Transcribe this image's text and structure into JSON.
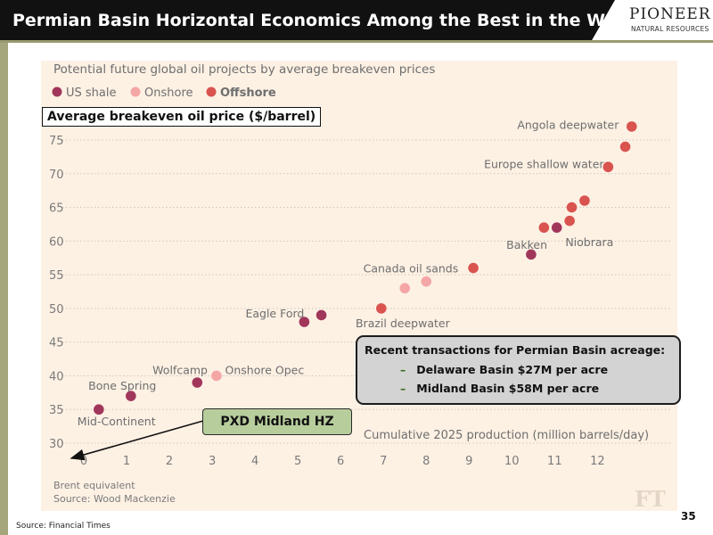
{
  "slide": {
    "title": "Permian Basin Horizontal Economics Among the Best in the World",
    "logo_main": "PIONEER",
    "logo_sub": "NATURAL RESOURCES",
    "source": "Source: Financial Times",
    "page_number": "35"
  },
  "annotations": {
    "yaxis_box": "Average breakeven oil price ($/barrel)",
    "pxd_label": "PXD Midland HZ",
    "callout_title": "Recent transactions for Permian Basin acreage:",
    "callout_items": [
      "Delaware Basin $27M per acre",
      "Midland Basin $58M per acre"
    ]
  },
  "colors": {
    "us_shale": "#a1365b",
    "onshore": "#f4a6a6",
    "offshore": "#d9534f"
  },
  "chart_data": {
    "type": "scatter",
    "title": "Potential future global oil projects by average breakeven prices",
    "xlabel": "Cumulative 2025 production (million barrels/day)",
    "ylabel": "Average breakeven oil price ($/barrel)",
    "xlim": [
      -0.5,
      13.7
    ],
    "ylim": [
      30,
      75
    ],
    "x_ticks": [
      0,
      1,
      2,
      3,
      4,
      5,
      6,
      7,
      8,
      9,
      10,
      11,
      12
    ],
    "y_ticks": [
      30,
      35,
      40,
      45,
      50,
      55,
      60,
      65,
      70,
      75
    ],
    "grid": true,
    "legend_position": "top-left",
    "legend": [
      "US shale",
      "Onshore",
      "Offshore"
    ],
    "footnotes": [
      "Brent equivalent",
      "Source: Wood Mackenzie"
    ],
    "watermark": "FT",
    "series": [
      {
        "name": "US shale",
        "points": [
          {
            "x": 0.35,
            "y": 35
          },
          {
            "x": 1.1,
            "y": 37
          },
          {
            "x": 2.65,
            "y": 39
          },
          {
            "x": 5.15,
            "y": 48
          },
          {
            "x": 5.55,
            "y": 49
          },
          {
            "x": 10.45,
            "y": 58
          },
          {
            "x": 11.05,
            "y": 62
          }
        ]
      },
      {
        "name": "Onshore",
        "points": [
          {
            "x": 3.1,
            "y": 40
          },
          {
            "x": 7.5,
            "y": 53
          },
          {
            "x": 8.0,
            "y": 54
          }
        ]
      },
      {
        "name": "Offshore",
        "points": [
          {
            "x": 6.95,
            "y": 50
          },
          {
            "x": 9.1,
            "y": 56
          },
          {
            "x": 10.75,
            "y": 62
          },
          {
            "x": 11.35,
            "y": 63
          },
          {
            "x": 11.4,
            "y": 65
          },
          {
            "x": 11.7,
            "y": 66
          },
          {
            "x": 12.25,
            "y": 71
          },
          {
            "x": 12.65,
            "y": 74
          },
          {
            "x": 12.8,
            "y": 77
          }
        ]
      }
    ],
    "annotations": [
      {
        "text": "Mid-Continent",
        "x": 0.35,
        "y": 33.3,
        "anchor": "start",
        "dx": -0.5
      },
      {
        "text": "Bone Spring",
        "x": 1.1,
        "y": 38.6,
        "anchor": "middle",
        "dx": -0.2
      },
      {
        "text": "Wolfcamp",
        "x": 2.65,
        "y": 40.9,
        "anchor": "middle",
        "dx": -0.4
      },
      {
        "text": "Onshore Opec",
        "x": 3.1,
        "y": 40.9,
        "anchor": "start",
        "dx": 0.2
      },
      {
        "text": "Eagle Ford",
        "x": 5.15,
        "y": 49.3,
        "anchor": "end",
        "dx": 0.0
      },
      {
        "text": "Brazil deepwater",
        "x": 6.95,
        "y": 47.9,
        "anchor": "start",
        "dx": -0.6
      },
      {
        "text": "Canada oil sands",
        "x": 8.0,
        "y": 56.0,
        "anchor": "end",
        "dx": 0.75
      },
      {
        "text": "Bakken",
        "x": 10.45,
        "y": 59.5,
        "anchor": "middle",
        "dx": -0.1
      },
      {
        "text": "Niobrara",
        "x": 11.05,
        "y": 59.9,
        "anchor": "start",
        "dx": 0.2
      },
      {
        "text": "Europe shallow water",
        "x": 12.25,
        "y": 71.5,
        "anchor": "end",
        "dx": -0.1
      },
      {
        "text": "Angola deepwater",
        "x": 12.8,
        "y": 77.3,
        "anchor": "end",
        "dx": -0.3
      }
    ]
  }
}
